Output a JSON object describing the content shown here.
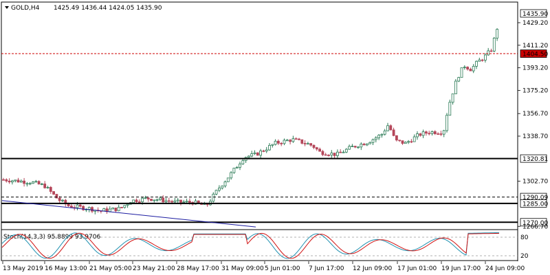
{
  "header": {
    "symbol_timeframe": "GOLD,H4",
    "ohlc": "1425.49 1436.44 1424.05 1435.90"
  },
  "indicator": {
    "label": "Stoch(14,3,3) 95.8899 93.9706",
    "level_high": "80",
    "level_low": "20"
  },
  "price_axis": {
    "ticks": [
      "1429.20",
      "1411.20",
      "1393.20",
      "1375.20",
      "1356.70",
      "1338.70",
      "1302.70",
      "1266.70"
    ],
    "current_price_label": "1435.90"
  },
  "price_levels": [
    {
      "label": "1404.50",
      "style": "dotted-red",
      "color": "#cc0000"
    },
    {
      "label": "1320.81",
      "style": "solid",
      "color": "#000000"
    },
    {
      "label": "1290.09",
      "style": "dashed",
      "color": "#000000"
    },
    {
      "label": "1285.00",
      "style": "solid",
      "color": "#000000"
    },
    {
      "label": "1270.00",
      "style": "solid",
      "color": "#000000"
    }
  ],
  "time_axis": {
    "ticks": [
      "13 May 2019",
      "16 May 13:00",
      "21 May 05:00",
      "23 May 21:00",
      "28 May 17:00",
      "31 May 09:00",
      "5 Jun 01:00",
      "7 Jun 17:00",
      "12 Jun 09:00",
      "17 Jun 01:00",
      "19 Jun 17:00",
      "24 Jun 09:00"
    ]
  },
  "colors": {
    "bull_candle": "#2a7a55",
    "bear_candle": "#b5475a",
    "trendline": "#1a1aa0",
    "stoch_main": "#1e90b0",
    "stoch_signal": "#d01010"
  }
}
